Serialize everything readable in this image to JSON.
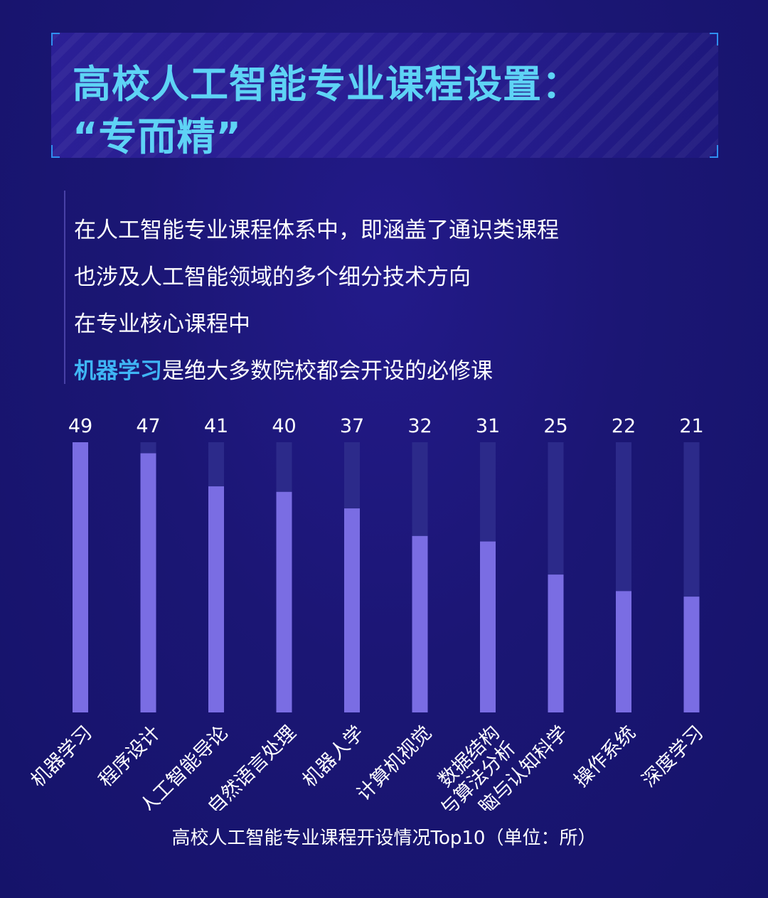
{
  "title": {
    "line1": "高校人工智能专业课程设置：",
    "line2": "“专而精”"
  },
  "intro": {
    "line1": "在人工智能专业课程体系中，即涵盖了通识类课程",
    "line2": "也涉及人工智能领域的多个细分技术方向",
    "line3": "在专业核心课程中",
    "line4_highlight": "机器学习",
    "line4_rest": "是绝大多数院校都会开设的必修课"
  },
  "colors": {
    "bar_fill": "#7a6de3",
    "bar_track": "#2c2a8a",
    "title_text": "#5ed3f5",
    "highlight": "#3fb6f5"
  },
  "chart_data": {
    "type": "bar",
    "categories": [
      "机器学习",
      "程序设计",
      "人工智能导论",
      "自然语言处理",
      "机器人学",
      "计算机视觉",
      "数据结构\n与算法分析",
      "脑与认知科学",
      "操作系统",
      "深度学习"
    ],
    "values": [
      49,
      47,
      41,
      40,
      37,
      32,
      31,
      25,
      22,
      21
    ],
    "ylim": [
      0,
      49
    ],
    "caption": "高校人工智能专业课程开设情况Top10（单位：所）",
    "grid": false,
    "value_labels": true
  }
}
